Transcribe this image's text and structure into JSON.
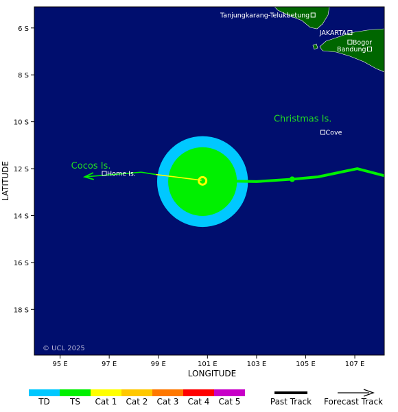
{
  "map": {
    "ocean_color": "#000e6e",
    "land_color": "#006600",
    "copyright": "© UCL 2025",
    "axes": {
      "xlabel": "LONGITUDE",
      "ylabel": "LATITUDE",
      "x_ticks": [
        {
          "value": 95,
          "label": "95 E"
        },
        {
          "value": 97,
          "label": "97 E"
        },
        {
          "value": 99,
          "label": "99 E"
        },
        {
          "value": 101,
          "label": "101 E"
        },
        {
          "value": 103,
          "label": "103 E"
        },
        {
          "value": 105,
          "label": "105 E"
        },
        {
          "value": 107,
          "label": "107 E"
        }
      ],
      "y_ticks": [
        {
          "value": -6,
          "label": "6 S"
        },
        {
          "value": -8,
          "label": "8 S"
        },
        {
          "value": -10,
          "label": "10 S"
        },
        {
          "value": -12,
          "label": "12 S"
        },
        {
          "value": -14,
          "label": "14 S"
        },
        {
          "value": -16,
          "label": "16 S"
        },
        {
          "value": -18,
          "label": "18 S"
        }
      ],
      "lon_range": [
        93.95,
        108.2
      ],
      "lat_range": [
        -19.95,
        -5.1
      ]
    },
    "places": [
      {
        "name": "Tanjungkarang-Telukbetung",
        "lon": 105.3,
        "lat": -5.45
      },
      {
        "name": "JAKARTA",
        "lon": 106.8,
        "lat": -6.2
      },
      {
        "name": "Bogor",
        "lon": 106.8,
        "lat": -6.6
      },
      {
        "name": "Bandung",
        "lon": 107.6,
        "lat": -6.9
      },
      {
        "name": "Cove",
        "lon": 105.7,
        "lat": -10.45
      },
      {
        "name": "Home Is.",
        "lon": 96.8,
        "lat": -12.2
      }
    ],
    "islands": [
      {
        "name": "Christmas Is.",
        "lon": 103.7,
        "lat": -10.0
      },
      {
        "name": "Cocos Is.",
        "lon": 95.45,
        "lat": -12.0
      }
    ],
    "storm": {
      "center_lon": 100.8,
      "center_lat": -12.55,
      "td_radius_deg": 1.85,
      "ts_radius_deg": 1.4
    },
    "past_track": [
      {
        "lon": 108.2,
        "lat": -12.3
      },
      {
        "lon": 107.1,
        "lat": -12.0
      },
      {
        "lon": 105.5,
        "lat": -12.35
      },
      {
        "lon": 104.45,
        "lat": -12.45
      },
      {
        "lon": 103.0,
        "lat": -12.55
      },
      {
        "lon": 101.5,
        "lat": -12.52
      },
      {
        "lon": 100.8,
        "lat": -12.5
      }
    ],
    "past_track_dots": [
      {
        "lon": 104.45,
        "lat": -12.45
      }
    ],
    "forecast_track": [
      {
        "lon": 100.8,
        "lat": -12.5,
        "category": "TS"
      },
      {
        "lon": 98.9,
        "lat": -12.25,
        "category": "Cat 1"
      },
      {
        "lon": 98.3,
        "lat": -12.15,
        "category": "TS"
      },
      {
        "lon": 96.0,
        "lat": -12.35,
        "category": "TS"
      }
    ]
  },
  "legend": {
    "categories": [
      {
        "label": "TD",
        "color": "#00c8ff"
      },
      {
        "label": "TS",
        "color": "#00f000"
      },
      {
        "label": "Cat 1",
        "color": "#ffff00"
      },
      {
        "label": "Cat 2",
        "color": "#ffc800"
      },
      {
        "label": "Cat 3",
        "color": "#ff7800"
      },
      {
        "label": "Cat 4",
        "color": "#ff0000"
      },
      {
        "label": "Cat 5",
        "color": "#c800c8"
      }
    ],
    "past_track_label": "Past Track",
    "forecast_track_label": "Forecast Track"
  }
}
